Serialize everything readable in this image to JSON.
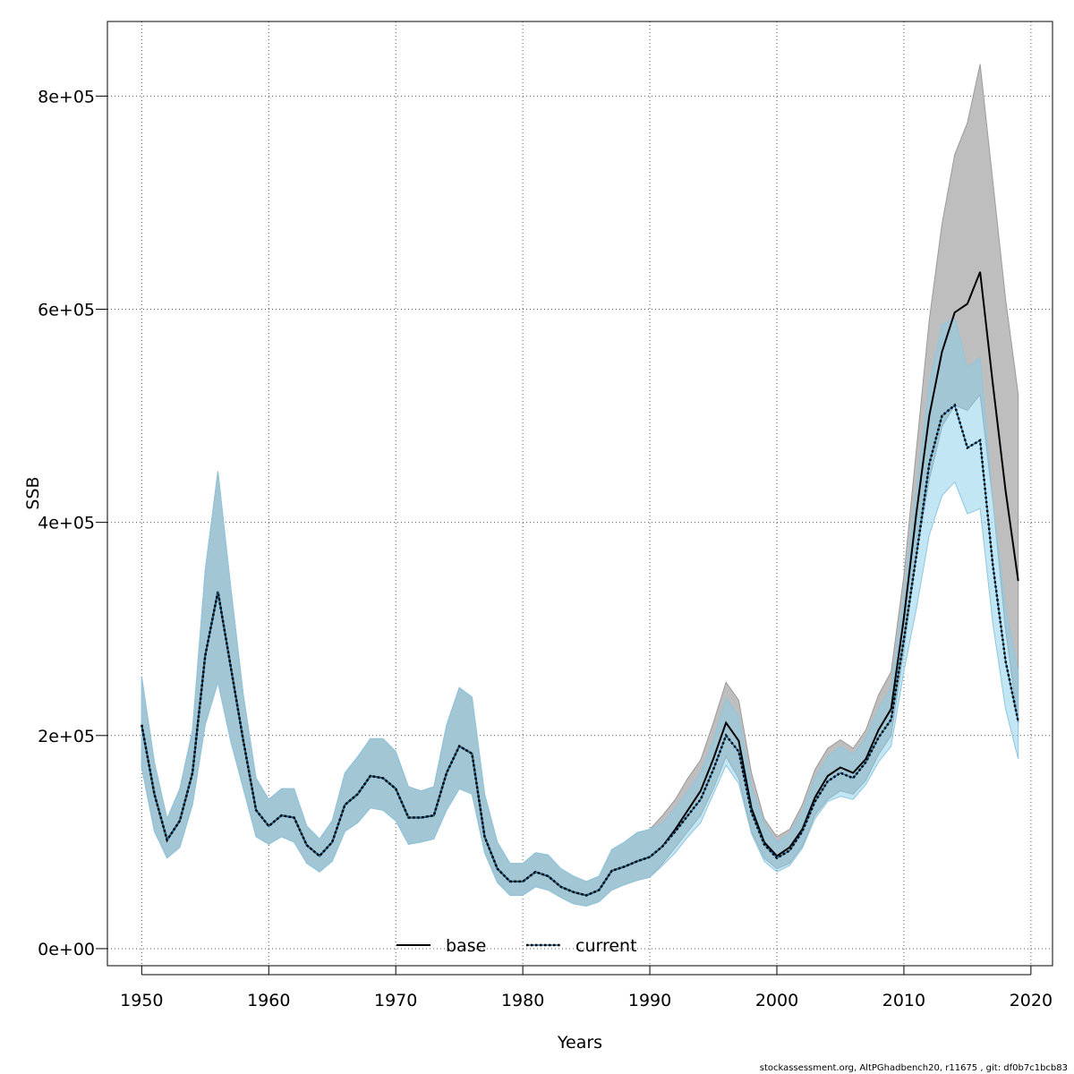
{
  "chart_data": {
    "type": "line",
    "xlabel": "Years",
    "ylabel": "SSB",
    "xlim": [
      1947.3,
      2021.7
    ],
    "ylim": [
      -16000,
      870000
    ],
    "x_ticks": [
      1950,
      1960,
      1970,
      1980,
      1990,
      2000,
      2010,
      2020
    ],
    "x_tick_labels": [
      "1950",
      "1960",
      "1970",
      "1980",
      "1990",
      "2000",
      "2010",
      "2020"
    ],
    "y_ticks": [
      0,
      200000,
      400000,
      600000,
      800000
    ],
    "y_tick_labels": [
      "0e+00",
      "2e+05",
      "4e+05",
      "6e+05",
      "8e+05"
    ],
    "grid": true,
    "legend_position": "bottom-center",
    "footer": "stockassessment.org, AltPGhadbench20, r11675 , git: df0b7c1bcb83",
    "colors": {
      "base_band": "#bebebe",
      "current_band": "#87ceeb",
      "base_line": "#000000",
      "current_line": "#1a6fa6"
    },
    "years": [
      1950,
      1951,
      1952,
      1953,
      1954,
      1955,
      1956,
      1957,
      1958,
      1959,
      1960,
      1961,
      1962,
      1963,
      1964,
      1965,
      1966,
      1967,
      1968,
      1969,
      1970,
      1971,
      1972,
      1973,
      1974,
      1975,
      1976,
      1977,
      1978,
      1979,
      1980,
      1981,
      1982,
      1983,
      1984,
      1985,
      1986,
      1987,
      1988,
      1989,
      1990,
      1991,
      1992,
      1993,
      1994,
      1995,
      1996,
      1997,
      1998,
      1999,
      2000,
      2001,
      2002,
      2003,
      2004,
      2005,
      2006,
      2007,
      2008,
      2009,
      2010,
      2011,
      2012,
      2013,
      2014,
      2015,
      2016,
      2017,
      2018,
      2019
    ],
    "series": [
      {
        "name": "base",
        "x_end": 2019,
        "values": [
          210000,
          145000,
          102000,
          120000,
          165000,
          275000,
          335000,
          265000,
          195000,
          130000,
          115000,
          125000,
          123000,
          97000,
          87000,
          100000,
          135000,
          145000,
          162000,
          160000,
          150000,
          123000,
          123000,
          125000,
          165000,
          190000,
          183000,
          105000,
          75000,
          63000,
          63000,
          72000,
          68000,
          58000,
          53000,
          50000,
          55000,
          73000,
          77000,
          82000,
          86000,
          96000,
          112000,
          130000,
          148000,
          178000,
          212000,
          195000,
          132000,
          100000,
          87000,
          95000,
          112000,
          142000,
          162000,
          170000,
          165000,
          178000,
          205000,
          225000,
          310000,
          410000,
          500000,
          560000,
          597000,
          605000,
          635000,
          530000,
          430000,
          345000
        ],
        "lower": [
          170000,
          110000,
          85000,
          95000,
          135000,
          210000,
          250000,
          195000,
          150000,
          105000,
          98000,
          105000,
          100000,
          80000,
          72000,
          82000,
          110000,
          118000,
          132000,
          130000,
          120000,
          98000,
          100000,
          103000,
          130000,
          150000,
          145000,
          90000,
          62000,
          50000,
          50000,
          58000,
          55000,
          48000,
          42000,
          40000,
          44000,
          55000,
          60000,
          64000,
          67000,
          80000,
          95000,
          110000,
          125000,
          150000,
          180000,
          160000,
          110000,
          85000,
          75000,
          80000,
          96000,
          125000,
          140000,
          148000,
          145000,
          158000,
          182000,
          200000,
          280000,
          370000,
          440000,
          490000,
          510000,
          505000,
          520000,
          420000,
          300000,
          210000
        ],
        "upper": [
          255000,
          175000,
          122000,
          150000,
          205000,
          355000,
          448000,
          340000,
          238000,
          160000,
          140000,
          150000,
          150000,
          115000,
          103000,
          120000,
          165000,
          180000,
          197000,
          197000,
          185000,
          152000,
          148000,
          152000,
          210000,
          245000,
          236000,
          145000,
          100000,
          80000,
          80000,
          90000,
          88000,
          75000,
          68000,
          63000,
          68000,
          93000,
          100000,
          109000,
          112000,
          125000,
          140000,
          160000,
          177000,
          212000,
          250000,
          233000,
          165000,
          122000,
          105000,
          112000,
          135000,
          168000,
          188000,
          196000,
          188000,
          205000,
          238000,
          260000,
          350000,
          470000,
          590000,
          680000,
          745000,
          775000,
          830000,
          720000,
          610000,
          520000
        ]
      },
      {
        "name": "current",
        "x_end": 2019,
        "values": [
          210000,
          145000,
          102000,
          120000,
          165000,
          275000,
          335000,
          265000,
          195000,
          130000,
          115000,
          125000,
          123000,
          97000,
          87000,
          100000,
          135000,
          145000,
          162000,
          160000,
          150000,
          123000,
          123000,
          125000,
          165000,
          190000,
          183000,
          105000,
          75000,
          63000,
          63000,
          72000,
          68000,
          58000,
          53000,
          50000,
          55000,
          73000,
          77000,
          82000,
          86000,
          96000,
          110000,
          125000,
          140000,
          168000,
          200000,
          185000,
          128000,
          98000,
          85000,
          92000,
          110000,
          138000,
          157000,
          165000,
          160000,
          175000,
          198000,
          215000,
          290000,
          370000,
          455000,
          500000,
          510000,
          470000,
          477000,
          360000,
          270000,
          213000
        ],
        "lower": [
          170000,
          110000,
          85000,
          95000,
          135000,
          210000,
          250000,
          195000,
          150000,
          105000,
          98000,
          105000,
          100000,
          80000,
          72000,
          82000,
          110000,
          118000,
          132000,
          130000,
          120000,
          98000,
          100000,
          103000,
          130000,
          150000,
          145000,
          90000,
          62000,
          50000,
          50000,
          58000,
          55000,
          48000,
          42000,
          40000,
          44000,
          55000,
          60000,
          64000,
          67000,
          78000,
          90000,
          105000,
          118000,
          145000,
          172000,
          155000,
          108000,
          82000,
          72000,
          78000,
          94000,
          122000,
          138000,
          143000,
          140000,
          154000,
          175000,
          190000,
          260000,
          320000,
          388000,
          425000,
          438000,
          408000,
          413000,
          305000,
          225000,
          178000
        ],
        "upper": [
          255000,
          175000,
          122000,
          150000,
          205000,
          355000,
          448000,
          340000,
          238000,
          160000,
          140000,
          150000,
          150000,
          115000,
          103000,
          120000,
          165000,
          180000,
          197000,
          197000,
          185000,
          152000,
          148000,
          152000,
          210000,
          245000,
          236000,
          145000,
          100000,
          80000,
          80000,
          90000,
          88000,
          75000,
          68000,
          63000,
          68000,
          93000,
          100000,
          109000,
          112000,
          118000,
          132000,
          148000,
          165000,
          195000,
          235000,
          218000,
          152000,
          118000,
          100000,
          108000,
          128000,
          160000,
          180000,
          190000,
          182000,
          198000,
          225000,
          245000,
          330000,
          430000,
          530000,
          585000,
          592000,
          545000,
          555000,
          420000,
          320000,
          260000
        ]
      }
    ]
  }
}
